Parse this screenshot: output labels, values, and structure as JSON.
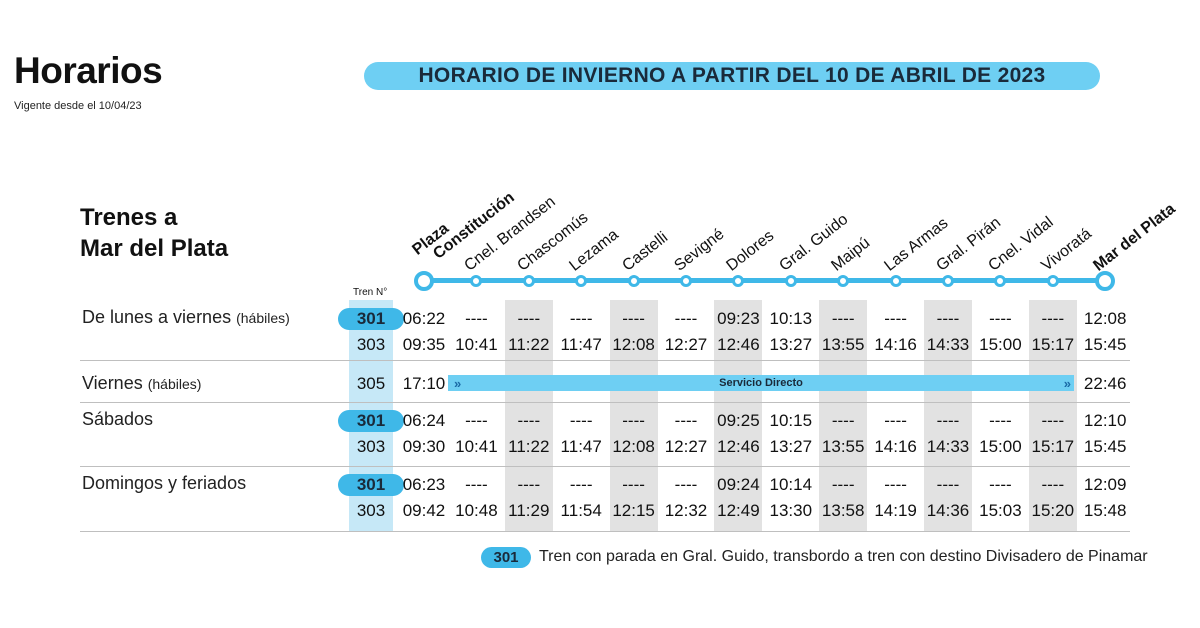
{
  "header": {
    "title": "Horarios",
    "subtitle": "Vigente desde el 10/04/23",
    "banner": "HORARIO DE INVIERNO A PARTIR DEL 10 DE ABRIL DE 2023"
  },
  "section": {
    "title_line1": "Trenes a",
    "title_line2": "Mar del Plata"
  },
  "stations": [
    {
      "line1": "Plaza",
      "line2": "Constitución",
      "bold": true
    },
    {
      "line1": "Cnel. Brandsen"
    },
    {
      "line1": "Chascomús"
    },
    {
      "line1": "Lezama"
    },
    {
      "line1": "Castelli"
    },
    {
      "line1": "Sevigné"
    },
    {
      "line1": "Dolores"
    },
    {
      "line1": "Gral. Guido"
    },
    {
      "line1": "Maipú"
    },
    {
      "line1": "Las Armas"
    },
    {
      "line1": "Gral. Pirán"
    },
    {
      "line1": "Cnel. Vidal"
    },
    {
      "line1": "Vivoratá"
    },
    {
      "line1": "Mar del Plata",
      "bold": true
    }
  ],
  "table": {
    "train_header": "Tren N°",
    "rows": [
      {
        "label": "De lunes a viernes",
        "label_paren": "(hábiles)",
        "trains": [
          {
            "number": "301",
            "highlight": true,
            "times": [
              "06:22",
              "----",
              "----",
              "----",
              "----",
              "----",
              "09:23",
              "10:13",
              "----",
              "----",
              "----",
              "----",
              "----",
              "12:08"
            ]
          },
          {
            "number": "303",
            "highlight": false,
            "times": [
              "09:35",
              "10:41",
              "11:22",
              "11:47",
              "12:08",
              "12:27",
              "12:46",
              "13:27",
              "13:55",
              "14:16",
              "14:33",
              "15:00",
              "15:17",
              "15:45"
            ]
          }
        ]
      },
      {
        "label": "Viernes",
        "label_paren": "(hábiles)",
        "direct": true,
        "trains": [
          {
            "number": "305",
            "highlight": false,
            "depart": "17:10",
            "arrive": "22:46",
            "direct_label": "Servicio Directo"
          }
        ]
      },
      {
        "label": "Sábados",
        "label_paren": "",
        "trains": [
          {
            "number": "301",
            "highlight": true,
            "times": [
              "06:24",
              "----",
              "----",
              "----",
              "----",
              "----",
              "09:25",
              "10:15",
              "----",
              "----",
              "----",
              "----",
              "----",
              "12:10"
            ]
          },
          {
            "number": "303",
            "highlight": false,
            "times": [
              "09:30",
              "10:41",
              "11:22",
              "11:47",
              "12:08",
              "12:27",
              "12:46",
              "13:27",
              "13:55",
              "14:16",
              "14:33",
              "15:00",
              "15:17",
              "15:45"
            ]
          }
        ]
      },
      {
        "label": "Domingos y feriados",
        "label_paren": "",
        "trains": [
          {
            "number": "301",
            "highlight": true,
            "times": [
              "06:23",
              "----",
              "----",
              "----",
              "----",
              "----",
              "09:24",
              "10:14",
              "----",
              "----",
              "----",
              "----",
              "----",
              "12:09"
            ]
          },
          {
            "number": "303",
            "highlight": false,
            "times": [
              "09:42",
              "10:48",
              "11:29",
              "11:54",
              "12:15",
              "12:32",
              "12:49",
              "13:30",
              "13:58",
              "14:19",
              "14:36",
              "15:03",
              "15:20",
              "15:48"
            ]
          }
        ]
      }
    ]
  },
  "legend": {
    "train": "301",
    "text": "Tren con parada en Gral. Guido, transbordo a tren con destino Divisadero de Pinamar"
  },
  "colors": {
    "accent": "#3fb8e8",
    "banner": "#6ecff3",
    "shade": "#e2e2e2",
    "train_col": "#c6e8f7"
  }
}
